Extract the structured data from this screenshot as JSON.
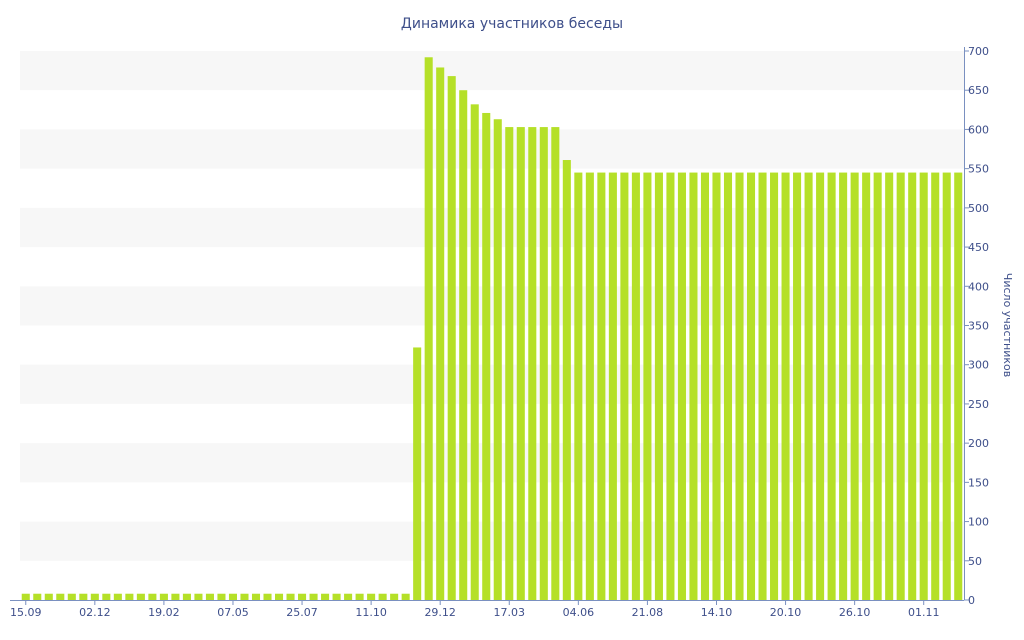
{
  "chart_data": {
    "type": "bar",
    "title": "Динамика участников беседы",
    "xlabel": "",
    "ylabel": "Число участников",
    "ylim": [
      0,
      700
    ],
    "y_ticks": [
      0,
      50,
      100,
      150,
      200,
      250,
      300,
      350,
      400,
      450,
      500,
      550,
      600,
      650,
      700
    ],
    "y_axis_position": "right",
    "grid": "alternating horizontal bands",
    "legend": "none",
    "colors": {
      "bar": "#b5e028",
      "band": "#f7f7f7",
      "axis": "#7a90c0",
      "text": "#3e4f8a"
    },
    "x_tick_labels": [
      {
        "index": 0,
        "label": "15.09"
      },
      {
        "index": 6,
        "label": "02.12"
      },
      {
        "index": 12,
        "label": "19.02"
      },
      {
        "index": 18,
        "label": "07.05"
      },
      {
        "index": 24,
        "label": "25.07"
      },
      {
        "index": 30,
        "label": "11.10"
      },
      {
        "index": 36,
        "label": "29.12"
      },
      {
        "index": 42,
        "label": "17.03"
      },
      {
        "index": 48,
        "label": "04.06"
      },
      {
        "index": 54,
        "label": "21.08"
      },
      {
        "index": 60,
        "label": "14.10"
      },
      {
        "index": 66,
        "label": "20.10"
      },
      {
        "index": 72,
        "label": "26.10"
      },
      {
        "index": 78,
        "label": "01.11"
      }
    ],
    "values": [
      8,
      8,
      8,
      8,
      8,
      8,
      8,
      8,
      8,
      8,
      8,
      8,
      8,
      8,
      8,
      8,
      8,
      8,
      8,
      8,
      8,
      8,
      8,
      8,
      8,
      8,
      8,
      8,
      8,
      8,
      8,
      8,
      8,
      8,
      322,
      692,
      679,
      668,
      650,
      632,
      621,
      613,
      603,
      603,
      603,
      603,
      603,
      561,
      545,
      545,
      545,
      545,
      545,
      545,
      545,
      545,
      545,
      545,
      545,
      545,
      545,
      545,
      545,
      545,
      545,
      545,
      545,
      545,
      545,
      545,
      545,
      545,
      545,
      545,
      545,
      545,
      545,
      545,
      545,
      545,
      545,
      545
    ]
  }
}
